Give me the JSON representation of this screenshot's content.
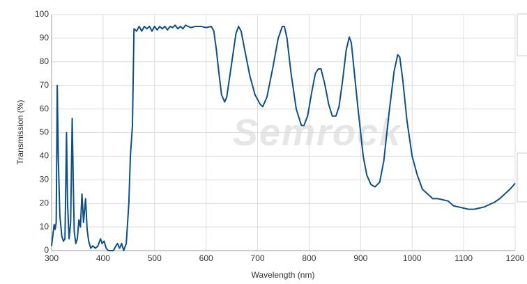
{
  "chart_data": {
    "type": "line",
    "watermark": "Semrock",
    "xlabel": "Wavelength (nm)",
    "ylabel": "Transmission (%)",
    "color": "#0d4f86",
    "grid": true,
    "xlim": [
      300,
      1200
    ],
    "ylim": [
      0,
      100
    ],
    "xticks": [
      300,
      400,
      500,
      600,
      700,
      800,
      900,
      1000,
      1100,
      1200
    ],
    "yticks": [
      0,
      10,
      20,
      30,
      40,
      50,
      60,
      70,
      80,
      90,
      100
    ],
    "x": [
      300,
      305,
      307,
      309,
      311,
      313,
      316,
      320,
      323,
      326,
      329,
      331,
      334,
      337,
      340,
      342,
      344,
      347,
      350,
      353,
      356,
      359,
      362,
      366,
      369,
      372,
      376,
      380,
      385,
      390,
      395,
      398,
      402,
      406,
      410,
      420,
      425,
      428,
      432,
      436,
      440,
      445,
      450,
      453,
      457,
      460,
      465,
      470,
      475,
      480,
      485,
      490,
      495,
      500,
      505,
      510,
      515,
      520,
      525,
      530,
      535,
      540,
      545,
      550,
      555,
      560,
      570,
      580,
      590,
      600,
      610,
      615,
      620,
      625,
      630,
      636,
      640,
      650,
      658,
      663,
      668,
      675,
      685,
      695,
      705,
      710,
      718,
      730,
      740,
      748,
      752,
      757,
      765,
      775,
      785,
      790,
      797,
      805,
      812,
      818,
      823,
      830,
      838,
      845,
      852,
      858,
      865,
      872,
      878,
      882,
      888,
      895,
      905,
      912,
      920,
      928,
      937,
      945,
      955,
      965,
      972,
      976,
      982,
      990,
      1000,
      1010,
      1020,
      1030,
      1040,
      1050,
      1060,
      1070,
      1080,
      1090,
      1100,
      1110,
      1120,
      1130,
      1140,
      1150,
      1160,
      1170,
      1180,
      1190,
      1200
    ],
    "values": [
      2,
      11,
      9,
      12,
      70,
      40,
      15,
      6,
      4,
      5,
      50,
      20,
      5,
      12,
      56,
      30,
      8,
      3,
      5,
      13,
      10,
      24,
      12,
      22,
      9,
      4,
      1,
      2,
      1,
      2,
      5,
      3,
      4,
      1,
      0,
      0,
      2,
      3,
      1,
      3,
      0,
      3,
      20,
      40,
      53,
      94,
      93,
      95,
      93,
      95,
      94,
      95,
      93,
      95,
      93.5,
      95,
      94,
      95,
      93.5,
      95,
      94.5,
      95.5,
      94,
      95,
      94,
      95.5,
      94.5,
      95,
      95,
      94.5,
      95,
      93,
      85,
      75,
      66,
      63,
      65,
      80,
      92,
      95,
      93,
      85,
      74,
      66,
      62,
      61,
      65,
      78,
      90,
      95,
      95,
      90,
      75,
      60,
      53,
      53,
      57,
      67,
      75,
      77,
      77,
      71,
      62,
      57,
      57,
      61,
      72,
      85,
      90.5,
      88,
      75,
      60,
      40,
      32,
      28,
      27,
      29,
      38,
      58,
      76,
      83,
      82,
      72,
      55,
      40,
      32,
      26,
      24,
      22,
      22,
      21.5,
      21,
      19,
      18.5,
      18,
      17.5,
      17.5,
      18,
      18.5,
      19.5,
      20.5,
      22,
      24,
      26,
      28.5
    ]
  }
}
